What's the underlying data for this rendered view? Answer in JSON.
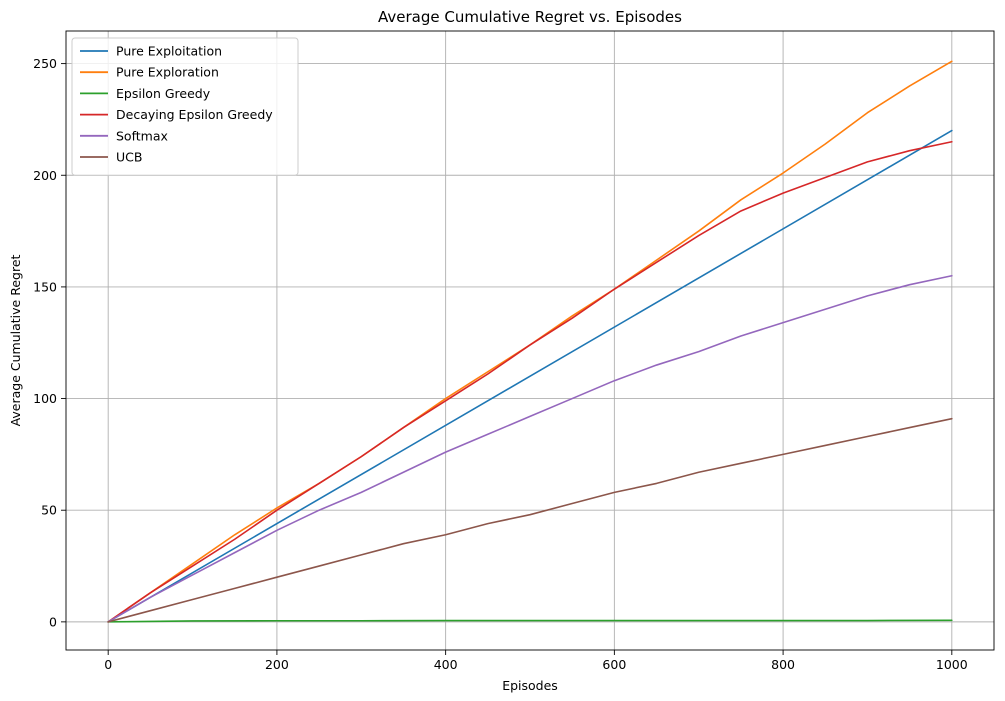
{
  "chart_data": {
    "type": "line",
    "title": "Average Cumulative Regret vs. Episodes",
    "xlabel": "Episodes",
    "ylabel": "Average Cumulative Regret",
    "xlim": [
      -50,
      1050
    ],
    "ylim": [
      -12.6,
      264.6
    ],
    "xticks": [
      0,
      200,
      400,
      600,
      800,
      1000
    ],
    "yticks": [
      0,
      50,
      100,
      150,
      200,
      250
    ],
    "grid": true,
    "legend_position": "top-left",
    "series": [
      {
        "name": "Pure Exploitation",
        "color": "#1f77b4",
        "x": [
          0,
          1000
        ],
        "y": [
          0,
          220
        ]
      },
      {
        "name": "Pure Exploration",
        "color": "#ff7f0e",
        "x": [
          0,
          50,
          100,
          150,
          200,
          250,
          300,
          350,
          400,
          450,
          500,
          550,
          600,
          650,
          700,
          750,
          800,
          850,
          900,
          950,
          1000
        ],
        "y": [
          0,
          13,
          26,
          39,
          51,
          62,
          74,
          87,
          100,
          112,
          124,
          137,
          149,
          162,
          175,
          189,
          201,
          214,
          228,
          240,
          251
        ]
      },
      {
        "name": "Epsilon Greedy",
        "color": "#2ca02c",
        "x": [
          0,
          100,
          200,
          300,
          400,
          500,
          600,
          700,
          800,
          900,
          1000
        ],
        "y": [
          0,
          0.4,
          0.5,
          0.5,
          0.6,
          0.6,
          0.6,
          0.6,
          0.6,
          0.6,
          0.7
        ]
      },
      {
        "name": "Decaying Epsilon Greedy",
        "color": "#d62728",
        "x": [
          0,
          50,
          100,
          150,
          200,
          250,
          300,
          350,
          400,
          450,
          500,
          550,
          600,
          650,
          700,
          750,
          800,
          850,
          900,
          950,
          1000
        ],
        "y": [
          0,
          13,
          25,
          37,
          50,
          62,
          74,
          87,
          99,
          111,
          124,
          136,
          149,
          161,
          173,
          184,
          192,
          199,
          206,
          211,
          215
        ]
      },
      {
        "name": "Softmax",
        "color": "#9467bd",
        "x": [
          0,
          50,
          100,
          150,
          200,
          250,
          300,
          350,
          400,
          450,
          500,
          550,
          600,
          650,
          700,
          750,
          800,
          850,
          900,
          950,
          1000
        ],
        "y": [
          0,
          11,
          21,
          31,
          41,
          50,
          58,
          67,
          76,
          84,
          92,
          100,
          108,
          115,
          121,
          128,
          134,
          140,
          146,
          151,
          155
        ]
      },
      {
        "name": "UCB",
        "color": "#8c564b",
        "x": [
          0,
          50,
          100,
          150,
          200,
          250,
          300,
          350,
          400,
          450,
          500,
          550,
          600,
          650,
          700,
          750,
          800,
          850,
          900,
          950,
          1000
        ],
        "y": [
          0,
          5,
          10,
          15,
          20,
          25,
          30,
          35,
          39,
          44,
          48,
          53,
          58,
          62,
          67,
          71,
          75,
          79,
          83,
          87,
          91
        ]
      }
    ]
  }
}
